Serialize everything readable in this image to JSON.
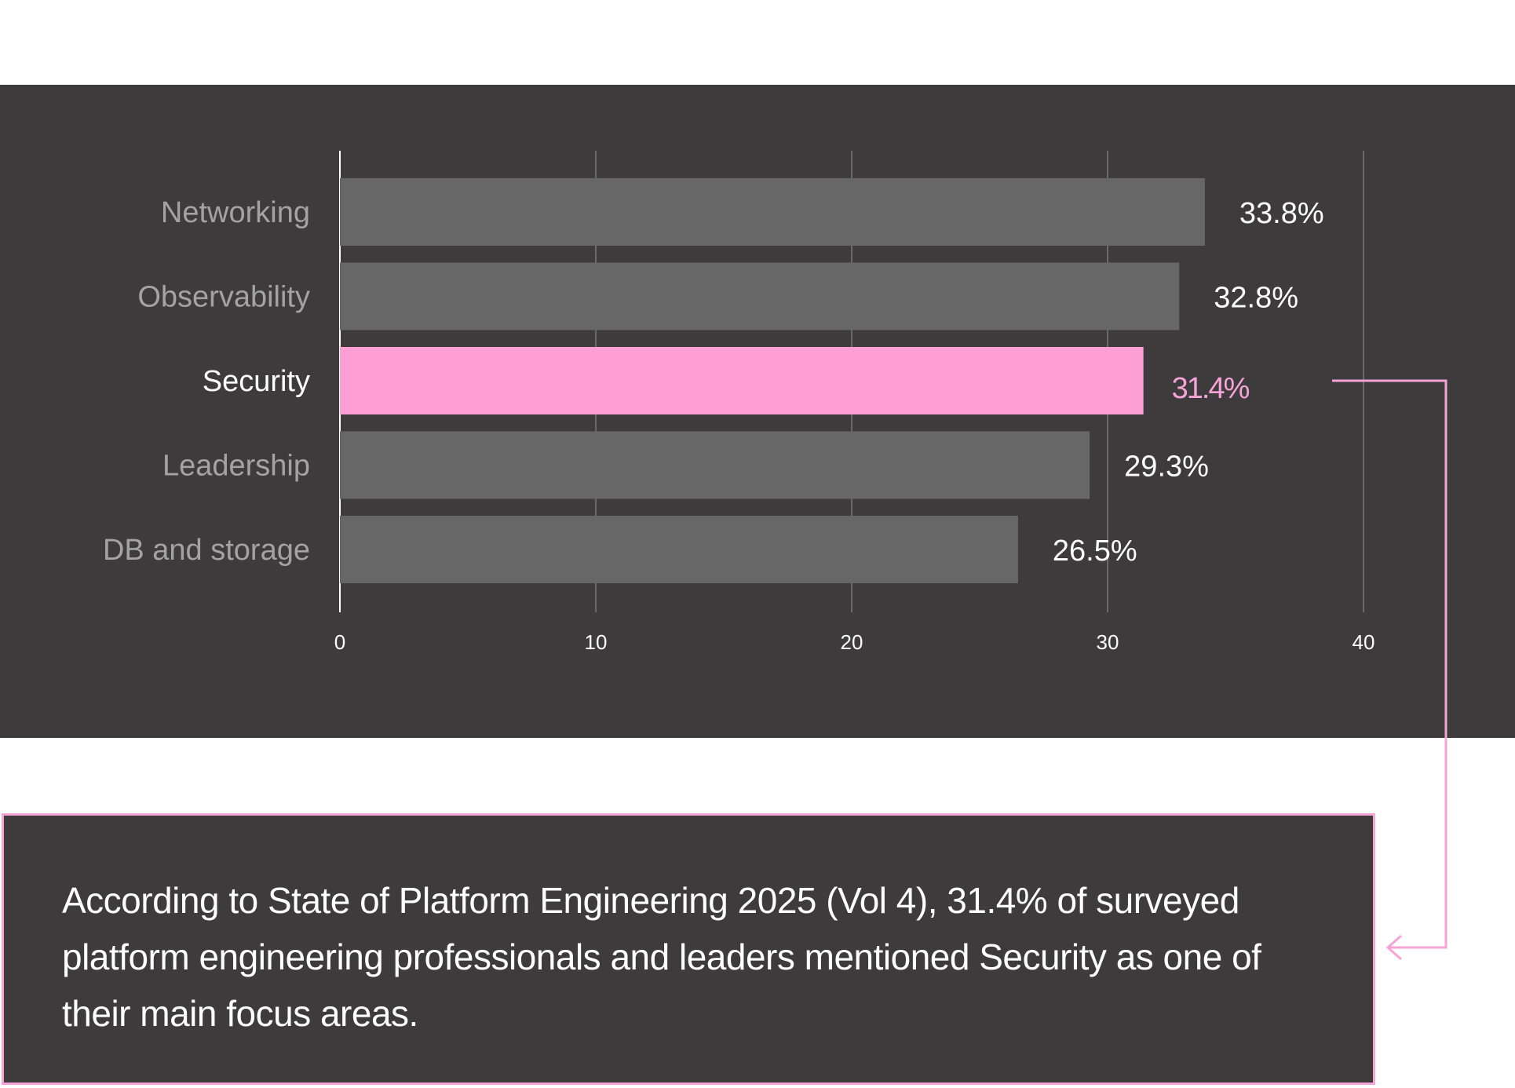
{
  "colors": {
    "panel_bg": "#3d3b3c",
    "bar_default": "#676767",
    "bar_highlight": "#fd9fd4",
    "label_default": "#a3a3a3",
    "label_highlight": "#ffffff",
    "value_default": "#ffffff",
    "value_highlight": "#f6a3d7",
    "grid": "#6a6a6a",
    "axis": "#ffffff",
    "callout_border": "#f6a3d7"
  },
  "chart_data": {
    "type": "bar",
    "orientation": "horizontal",
    "title": "",
    "xlabel": "",
    "ylabel": "",
    "categories": [
      "Networking",
      "Observability",
      "Security",
      "Leadership",
      "DB and storage"
    ],
    "values": [
      33.8,
      32.8,
      31.4,
      29.3,
      26.5
    ],
    "value_labels": [
      "33.8%",
      "32.8%",
      "31.4%",
      "29.3%",
      "26.5%"
    ],
    "highlight_index": 2,
    "xlim": [
      0,
      40
    ],
    "xticks": [
      0,
      10,
      20,
      30,
      40
    ],
    "grid": true,
    "legend": "none"
  },
  "callout": {
    "text": "According to State of Platform Engineering 2025 (Vol 4), 31.4% of surveyed platform engineering professionals and leaders mentioned Security as one of their main focus areas."
  }
}
